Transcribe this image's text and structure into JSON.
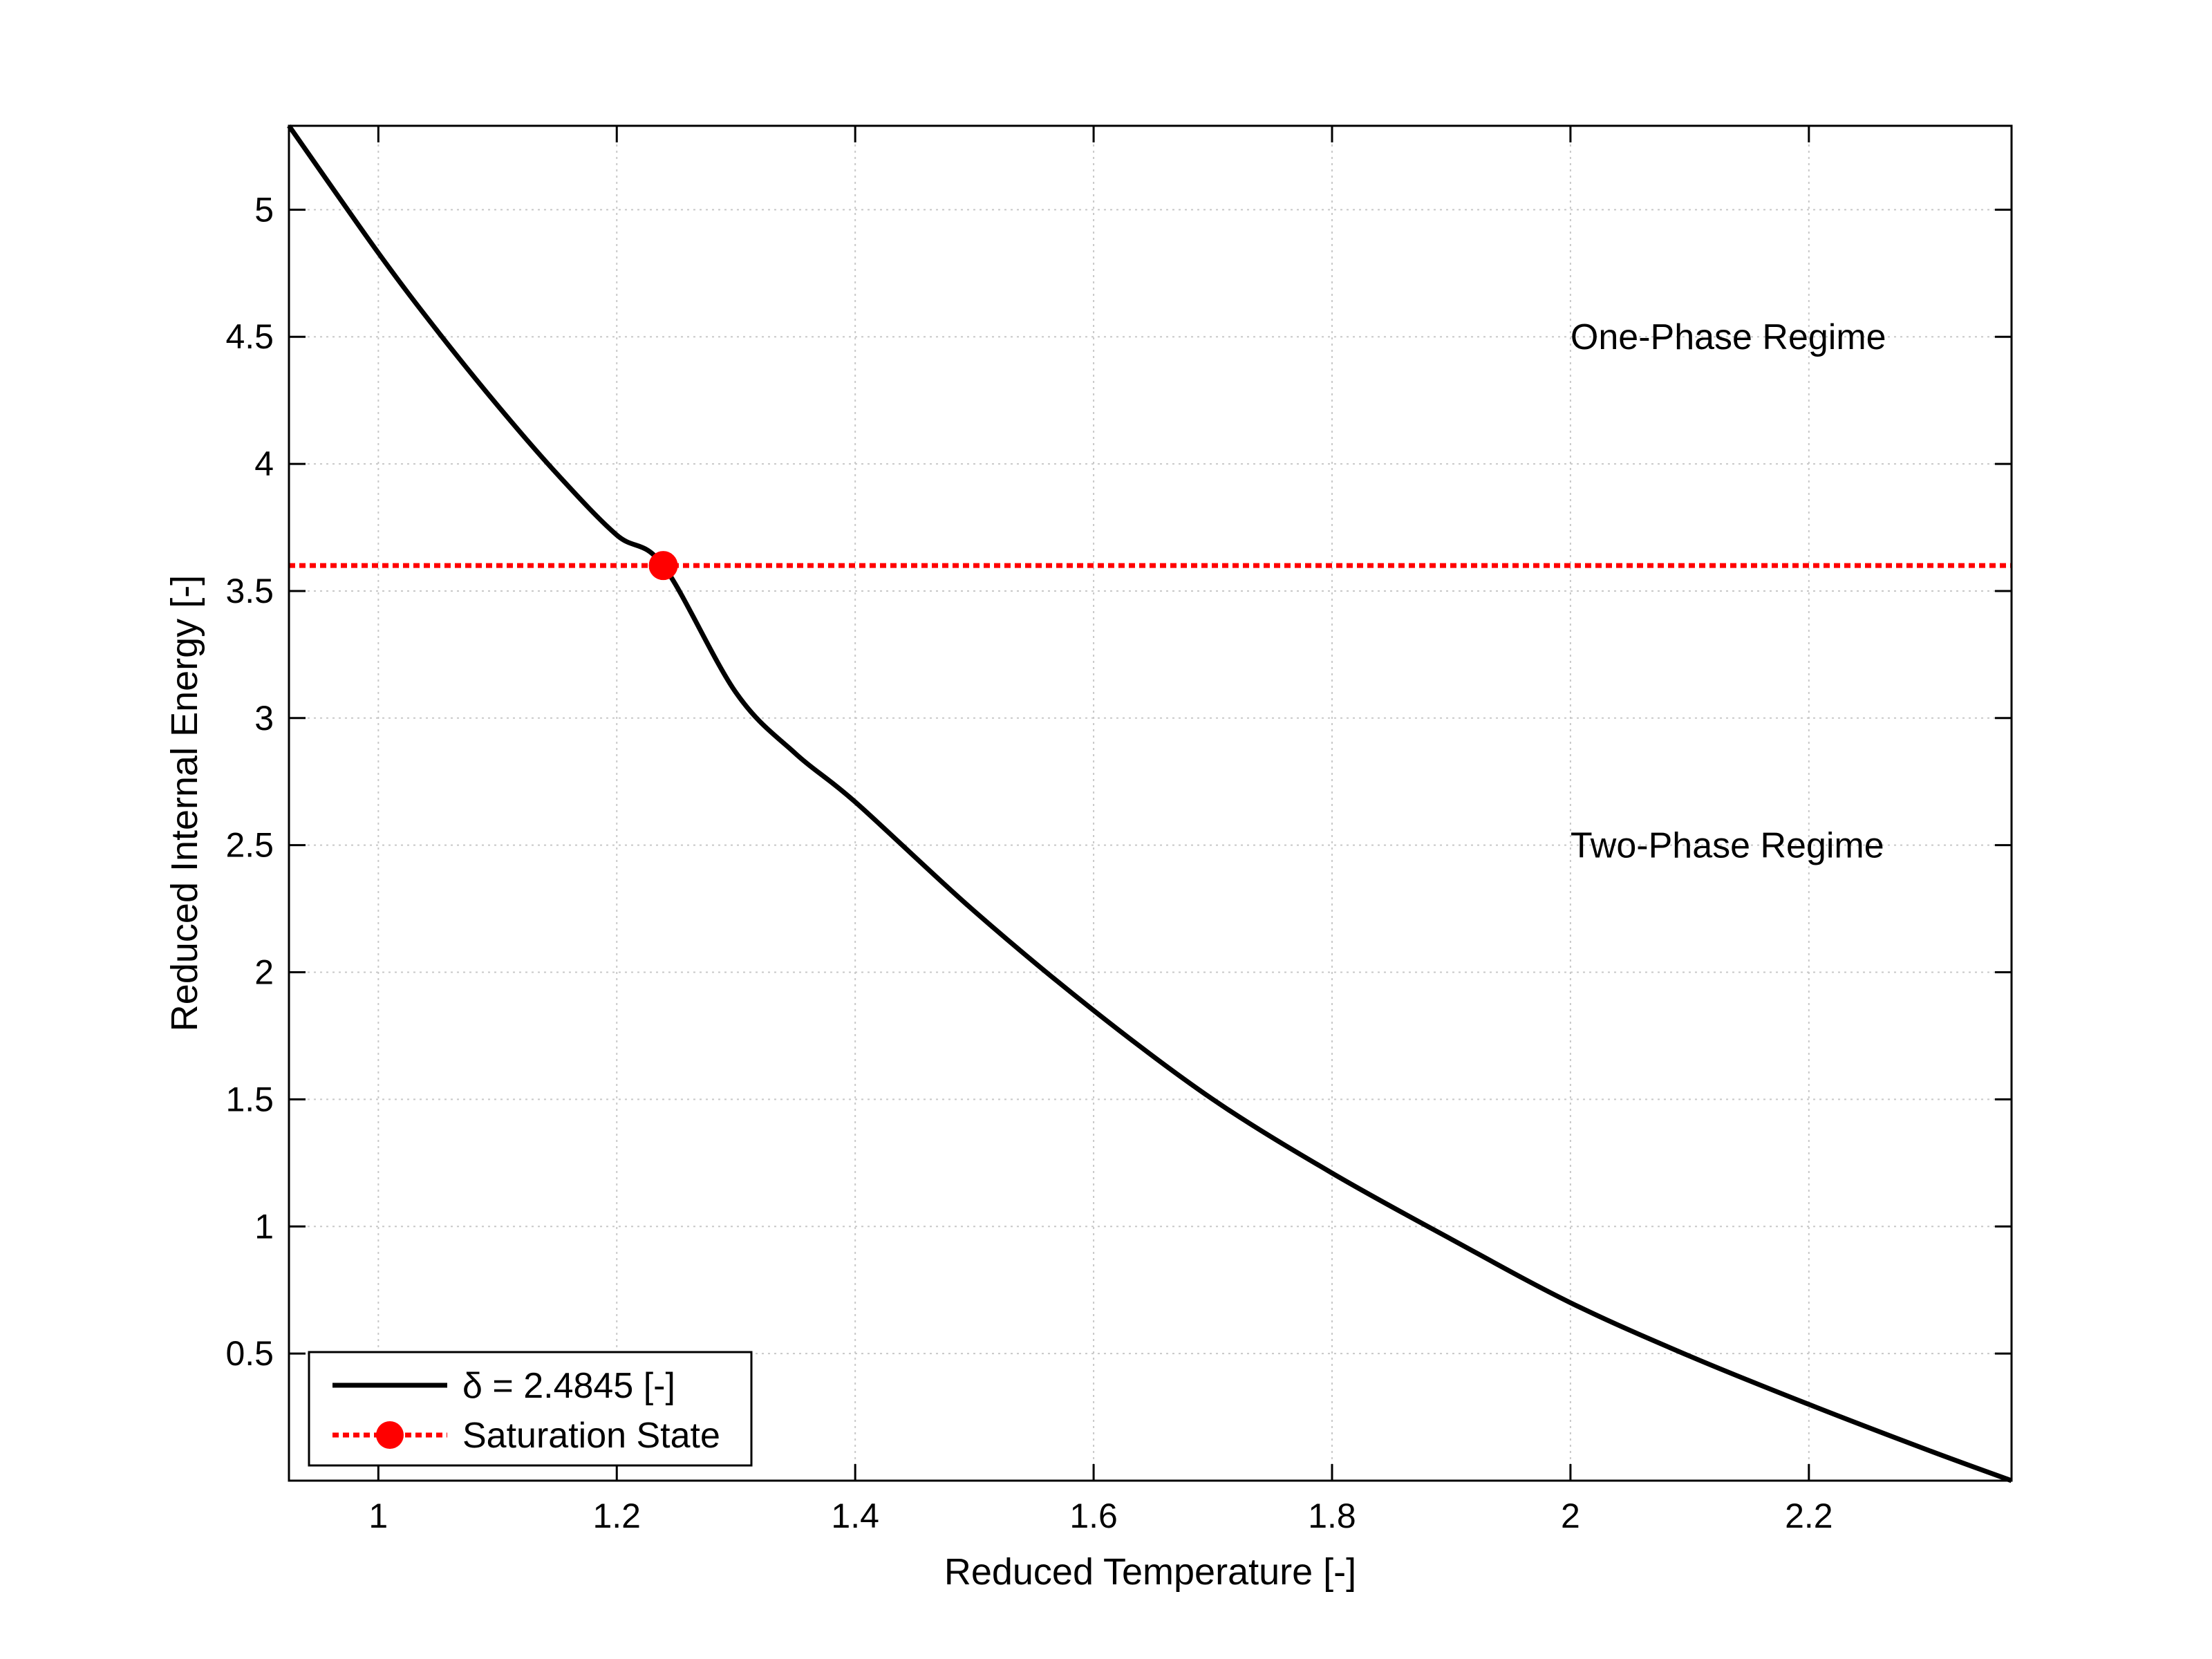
{
  "chart_data": {
    "type": "line",
    "title": "",
    "xlabel": "Reduced Temperature [-]",
    "ylabel": "Reduced Internal Energy [-]",
    "xlim": [
      0.925,
      2.37
    ],
    "ylim": [
      0,
      5.33
    ],
    "xticks": [
      1,
      1.2,
      1.4,
      1.6,
      1.8,
      2,
      2.2
    ],
    "xtick_labels": [
      "1",
      "1.2",
      "1.4",
      "1.6",
      "1.8",
      "2",
      "2.2"
    ],
    "yticks": [
      0.5,
      1,
      1.5,
      2,
      2.5,
      3,
      3.5,
      4,
      4.5,
      5
    ],
    "ytick_labels": [
      "0.5",
      "1",
      "1.5",
      "2",
      "2.5",
      "3",
      "3.5",
      "4",
      "4.5",
      "5"
    ],
    "grid": true,
    "series": [
      {
        "name": "δ = 2.4845 [-]",
        "color": "#000000",
        "style": "solid",
        "x": [
          0.925,
          1.0,
          1.05,
          1.1,
          1.15,
          1.2,
          1.239,
          1.3,
          1.35,
          1.4,
          1.5,
          1.6,
          1.7,
          1.8,
          1.9,
          2.0,
          2.1,
          2.2,
          2.3,
          2.37
        ],
        "y": [
          5.33,
          4.83,
          4.52,
          4.23,
          3.96,
          3.72,
          3.6,
          3.1,
          2.86,
          2.67,
          2.24,
          1.85,
          1.5,
          1.21,
          0.95,
          0.7,
          0.49,
          0.3,
          0.12,
          0.0
        ]
      },
      {
        "name": "Saturation State",
        "color": "#ff0000",
        "style": "dotted",
        "marker": "circle",
        "x": [
          0.925,
          2.37
        ],
        "y": [
          3.6,
          3.6
        ],
        "marker_point": [
          1.239,
          3.6
        ]
      }
    ],
    "annotations": [
      {
        "text": "One-Phase Regime",
        "x": 2.0,
        "y": 4.5
      },
      {
        "text": "Two-Phase Regime",
        "x": 2.0,
        "y": 2.5
      }
    ],
    "legend": {
      "position": "bottom-left",
      "entries": [
        "δ = 2.4845 [-]",
        "Saturation State"
      ]
    }
  }
}
